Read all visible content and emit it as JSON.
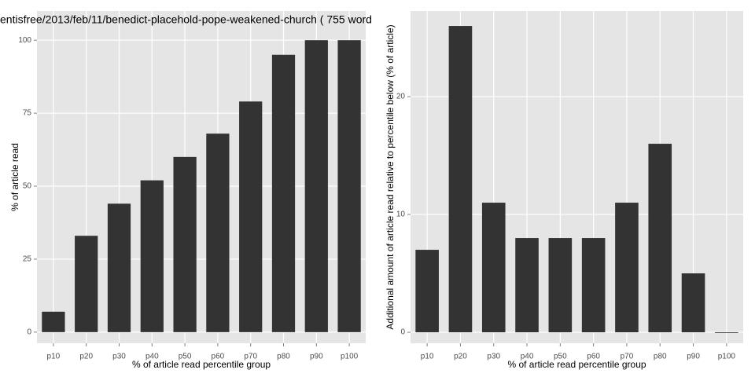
{
  "chart_data": [
    {
      "type": "bar",
      "title": "entisfree/2013/feb/11/benedict-placehold-pope-weakened-church ( 755 word",
      "x_label": "% of article read percentile group",
      "y_label": "% of article read",
      "categories": [
        "p10",
        "p20",
        "p30",
        "p40",
        "p50",
        "p60",
        "p70",
        "p80",
        "p90",
        "p100"
      ],
      "values": [
        7,
        33,
        44,
        52,
        60,
        68,
        79,
        95,
        100,
        100
      ],
      "color": "#333333",
      "ylim": [
        -3.8,
        110
      ],
      "yticks": [
        0,
        25,
        50,
        75,
        100
      ],
      "grid": true
    },
    {
      "type": "bar",
      "x_label": "% of article read percentile group",
      "y_label": "Additional amount of article read relative to percentile below (% of article)",
      "categories": [
        "p10",
        "p20",
        "p30",
        "p40",
        "p50",
        "p60",
        "p70",
        "p80",
        "p90",
        "p100"
      ],
      "values": [
        7,
        26,
        11,
        8,
        8,
        8,
        11,
        16,
        5,
        0
      ],
      "color": "#333333",
      "ylim": [
        -0.93,
        27.27
      ],
      "yticks": [
        0,
        10,
        20
      ],
      "grid": true
    }
  ]
}
